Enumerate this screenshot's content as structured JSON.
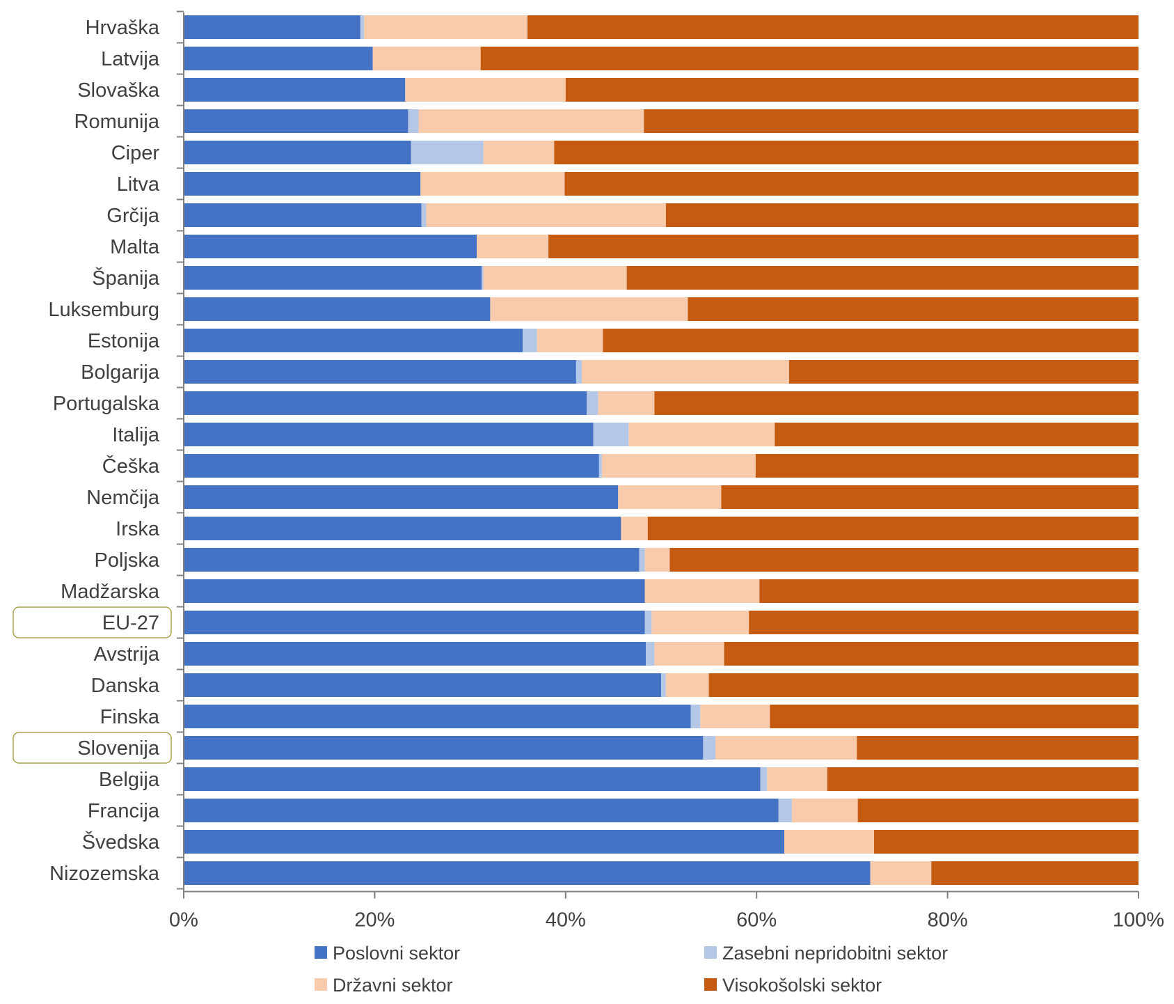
{
  "chart_data": {
    "type": "bar",
    "orientation": "horizontal",
    "stacked": "percent",
    "title": "",
    "xlabel": "",
    "ylabel": "",
    "xlim": [
      0,
      100
    ],
    "x_ticks": [
      "0%",
      "20%",
      "40%",
      "60%",
      "80%",
      "100%"
    ],
    "grid": false,
    "legend_position": "bottom",
    "highlighted_categories": [
      "EU-27",
      "Slovenija"
    ],
    "categories": [
      "Hrvaška",
      "Latvija",
      "Slovaška",
      "Romunija",
      "Ciper",
      "Litva",
      "Grčija",
      "Malta",
      "Španija",
      "Luksemburg",
      "Estonija",
      "Bolgarija",
      "Portugalska",
      "Italija",
      "Češka",
      "Nemčija",
      "Irska",
      "Poljska",
      "Madžarska",
      "EU-27",
      "Avstrija",
      "Danska",
      "Finska",
      "Slovenija",
      "Belgija",
      "Francija",
      "Švedska",
      "Nizozemska"
    ],
    "series": [
      {
        "name": "Poslovni sektor",
        "color": "#4472c4",
        "values": [
          18.5,
          19.8,
          23.2,
          23.5,
          23.8,
          24.8,
          24.9,
          30.7,
          31.2,
          32.1,
          35.5,
          41.1,
          42.2,
          42.9,
          43.5,
          45.5,
          45.8,
          47.7,
          48.3,
          48.3,
          48.4,
          50.0,
          53.1,
          54.4,
          60.4,
          62.3,
          62.9,
          71.9
        ]
      },
      {
        "name": "Zasebni nepridobitni sektor",
        "color": "#b4c7e7",
        "values": [
          0.4,
          0.0,
          0.0,
          1.1,
          7.6,
          0.0,
          0.5,
          0.0,
          0.2,
          0.0,
          1.5,
          0.6,
          1.2,
          3.7,
          0.3,
          0.0,
          0.0,
          0.6,
          0.0,
          0.7,
          0.9,
          0.5,
          1.0,
          1.3,
          0.7,
          1.4,
          0.0,
          0.0
        ]
      },
      {
        "name": "Državni sektor",
        "color": "#f8cbad",
        "values": [
          17.1,
          11.3,
          16.8,
          23.6,
          7.4,
          15.1,
          25.1,
          7.5,
          15.0,
          20.7,
          6.9,
          21.7,
          5.9,
          15.3,
          16.1,
          10.8,
          2.8,
          2.6,
          12.0,
          10.2,
          7.3,
          4.5,
          7.3,
          14.8,
          6.3,
          6.9,
          9.4,
          6.4
        ]
      },
      {
        "name": "Visokošolski sektor",
        "color": "#c55a11",
        "values": [
          64.0,
          68.9,
          60.0,
          51.8,
          61.2,
          60.1,
          49.5,
          61.8,
          53.6,
          47.2,
          56.1,
          36.6,
          50.7,
          38.1,
          40.1,
          43.7,
          51.4,
          49.1,
          39.7,
          40.8,
          43.4,
          45.0,
          38.6,
          29.5,
          32.6,
          29.4,
          27.7,
          21.7
        ]
      }
    ]
  }
}
